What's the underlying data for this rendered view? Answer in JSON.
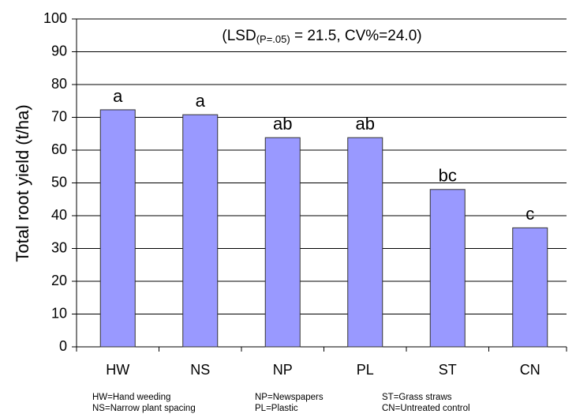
{
  "chart_data": {
    "type": "bar",
    "annotation": [
      "(LSD",
      "(P=.05)",
      " = 21.5, CV%=24.0)"
    ],
    "y_label": "Total root yield (t/ha)",
    "categories": [
      "HW",
      "NS",
      "NP",
      "PL",
      "ST",
      "CN"
    ],
    "values": [
      72.3,
      70.8,
      63.8,
      63.8,
      48.0,
      36.3
    ],
    "group_letters": [
      "a",
      "a",
      "ab",
      "ab",
      "bc",
      "c"
    ],
    "color": "#9999ff",
    "ylim": [
      0,
      100
    ],
    "yticks": [
      0,
      10,
      20,
      30,
      40,
      50,
      60,
      70,
      80,
      90,
      100
    ],
    "grid": true,
    "footnotes": [
      [
        "HW=Hand weeding",
        "NS=Narrow plant spacing"
      ],
      [
        "NP=Newspapers",
        "PL=Plastic"
      ],
      [
        "ST=Grass straws",
        "CN=Untreated control"
      ]
    ]
  }
}
